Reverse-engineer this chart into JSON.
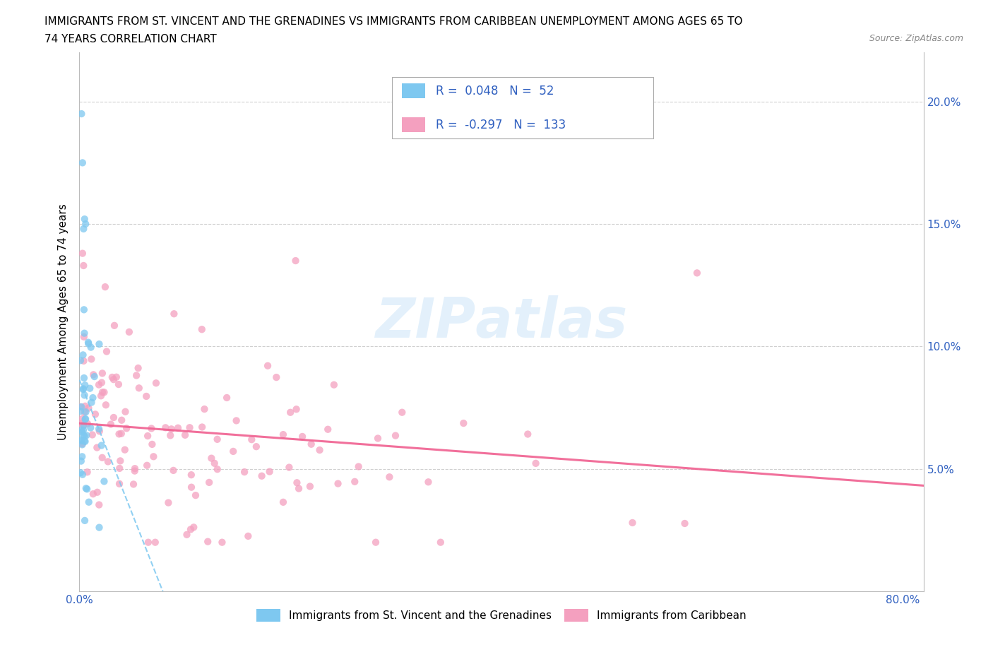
{
  "title_line1": "IMMIGRANTS FROM ST. VINCENT AND THE GRENADINES VS IMMIGRANTS FROM CARIBBEAN UNEMPLOYMENT AMONG AGES 65 TO",
  "title_line2": "74 YEARS CORRELATION CHART",
  "source_text": "Source: ZipAtlas.com",
  "ylabel": "Unemployment Among Ages 65 to 74 years",
  "xlim": [
    0.0,
    0.82
  ],
  "ylim": [
    0.0,
    0.22
  ],
  "r_blue": 0.048,
  "n_blue": 52,
  "r_pink": -0.297,
  "n_pink": 133,
  "blue_color": "#7ec8f0",
  "pink_color": "#f4a0bf",
  "trend_blue_color": "#7ec8f0",
  "trend_pink_color": "#f06090",
  "legend_label_blue": "Immigrants from St. Vincent and the Grenadines",
  "legend_label_pink": "Immigrants from Caribbean"
}
